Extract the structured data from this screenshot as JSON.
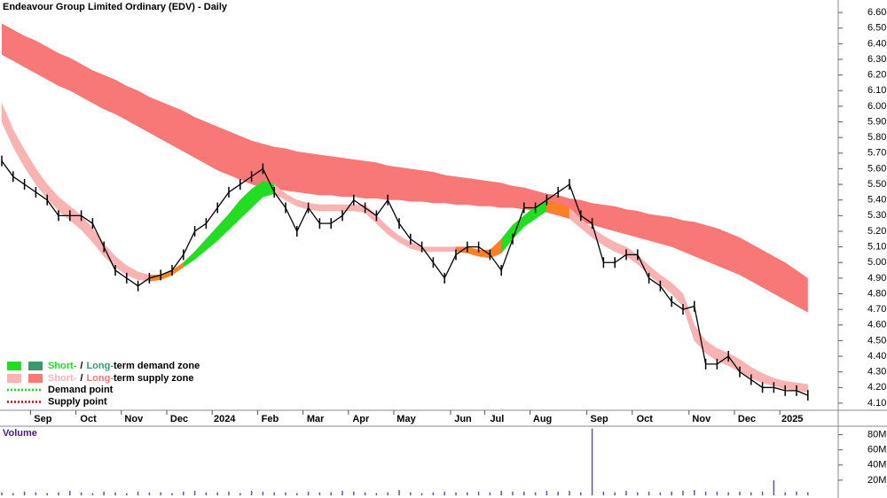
{
  "chart_data": {
    "type": "line",
    "title": "Endeavour Group Limited Ordinary (EDV) - Daily",
    "categories": [
      null,
      null,
      null,
      "Sep",
      null,
      null,
      null,
      "Oct",
      null,
      null,
      null,
      "Nov",
      null,
      null,
      null,
      "Dec",
      null,
      null,
      null,
      "2024",
      null,
      null,
      null,
      "Feb",
      null,
      null,
      null,
      "Mar",
      null,
      null,
      null,
      "Apr",
      null,
      null,
      null,
      "May",
      null,
      null,
      null,
      null,
      "Jun",
      null,
      null,
      "Jul",
      null,
      null,
      null,
      "Aug",
      null,
      null,
      null,
      null,
      "Sep",
      null,
      null,
      null,
      "Oct",
      null,
      null,
      null,
      null,
      "Nov",
      null,
      null,
      null,
      "Dec",
      null,
      null,
      null,
      "2025",
      null,
      null
    ],
    "close": {
      "color": "#000000",
      "values": [
        5.65,
        5.55,
        5.5,
        5.45,
        5.4,
        5.3,
        5.3,
        5.3,
        5.25,
        5.1,
        4.95,
        4.9,
        4.85,
        4.9,
        4.92,
        4.95,
        5.05,
        5.2,
        5.25,
        5.35,
        5.45,
        5.5,
        5.55,
        5.6,
        5.45,
        5.35,
        5.2,
        5.35,
        5.25,
        5.25,
        5.3,
        5.4,
        5.35,
        5.3,
        5.4,
        5.25,
        5.15,
        5.1,
        5.0,
        4.9,
        5.05,
        5.1,
        5.1,
        5.05,
        4.95,
        5.15,
        5.35,
        5.35,
        5.4,
        5.45,
        5.5,
        5.3,
        5.25,
        5.0,
        5.0,
        5.05,
        5.05,
        4.9,
        4.85,
        4.75,
        4.7,
        4.72,
        4.35,
        4.35,
        4.4,
        4.3,
        4.25,
        4.2,
        4.2,
        4.18,
        4.18,
        4.15
      ]
    },
    "long_band": {
      "color": "#f87878",
      "upper": [
        6.53,
        6.49,
        6.45,
        6.42,
        6.38,
        6.34,
        6.31,
        6.27,
        6.23,
        6.2,
        6.17,
        6.13,
        6.1,
        6.06,
        6.03,
        6.0,
        5.97,
        5.93,
        5.9,
        5.87,
        5.84,
        5.81,
        5.78,
        5.76,
        5.74,
        5.73,
        5.71,
        5.7,
        5.69,
        5.68,
        5.67,
        5.66,
        5.65,
        5.64,
        5.62,
        5.61,
        5.6,
        5.59,
        5.58,
        5.56,
        5.55,
        5.54,
        5.53,
        5.52,
        5.51,
        5.49,
        5.48,
        5.46,
        5.44,
        5.43,
        5.41,
        5.4,
        5.38,
        5.37,
        5.36,
        5.34,
        5.33,
        5.31,
        5.3,
        5.29,
        5.27,
        5.26,
        5.24,
        5.22,
        5.19,
        5.16,
        5.12,
        5.08,
        5.04,
        5.0,
        4.95,
        4.9
      ],
      "lower": [
        6.33,
        6.29,
        6.25,
        6.21,
        6.17,
        6.13,
        6.1,
        6.06,
        6.02,
        5.98,
        5.95,
        5.91,
        5.87,
        5.83,
        5.79,
        5.75,
        5.71,
        5.67,
        5.63,
        5.59,
        5.56,
        5.53,
        5.5,
        5.48,
        5.47,
        5.46,
        5.45,
        5.44,
        5.43,
        5.43,
        5.42,
        5.42,
        5.41,
        5.41,
        5.4,
        5.4,
        5.39,
        5.39,
        5.38,
        5.38,
        5.37,
        5.37,
        5.36,
        5.36,
        5.35,
        5.35,
        5.34,
        5.33,
        5.32,
        5.3,
        5.28,
        5.26,
        5.24,
        5.22,
        5.2,
        5.18,
        5.16,
        5.14,
        5.12,
        5.1,
        5.07,
        5.04,
        5.01,
        4.98,
        4.95,
        4.92,
        4.88,
        4.84,
        4.8,
        4.76,
        4.72,
        4.68
      ]
    },
    "short_band": {
      "upper": [
        6.02,
        5.85,
        5.72,
        5.6,
        5.5,
        5.42,
        5.36,
        5.3,
        5.22,
        5.12,
        5.04,
        4.98,
        4.94,
        4.92,
        4.92,
        4.95,
        5.0,
        5.07,
        5.15,
        5.23,
        5.31,
        5.4,
        5.47,
        5.52,
        5.5,
        5.44,
        5.4,
        5.38,
        5.37,
        5.37,
        5.37,
        5.37,
        5.37,
        5.3,
        5.23,
        5.17,
        5.13,
        5.1,
        5.1,
        5.1,
        5.1,
        5.1,
        5.08,
        5.08,
        5.15,
        5.24,
        5.3,
        5.36,
        5.4,
        5.38,
        5.35,
        5.28,
        5.22,
        5.17,
        5.13,
        5.1,
        5.05,
        4.98,
        4.92,
        4.87,
        4.8,
        4.6,
        4.5,
        4.45,
        4.42,
        4.38,
        4.33,
        4.29,
        4.26,
        4.24,
        4.23,
        4.22
      ],
      "lower": [
        5.9,
        5.74,
        5.61,
        5.5,
        5.41,
        5.33,
        5.27,
        5.21,
        5.13,
        5.04,
        4.97,
        4.92,
        4.89,
        4.88,
        4.89,
        4.92,
        4.97,
        5.02,
        5.08,
        5.14,
        5.21,
        5.28,
        5.35,
        5.42,
        5.44,
        5.4,
        5.36,
        5.34,
        5.33,
        5.33,
        5.33,
        5.33,
        5.32,
        5.25,
        5.18,
        5.13,
        5.09,
        5.07,
        5.07,
        5.07,
        5.07,
        5.06,
        5.04,
        5.03,
        5.06,
        5.15,
        5.23,
        5.28,
        5.33,
        5.31,
        5.28,
        5.22,
        5.16,
        5.11,
        5.07,
        5.04,
        4.99,
        4.92,
        4.86,
        4.8,
        4.72,
        4.5,
        4.42,
        4.37,
        4.34,
        4.3,
        4.26,
        4.23,
        4.21,
        4.19,
        4.18,
        4.17
      ],
      "colors": [
        "#f9b3b3",
        "#f9b3b3",
        "#f9b3b3",
        "#f9b3b3",
        "#f9b3b3",
        "#f9b3b3",
        "#f9b3b3",
        "#f9b3b3",
        "#f9b3b3",
        "#f9b3b3",
        "#f9b3b3",
        "#f9b3b3",
        "#f9b3b3",
        "#ff7f27",
        "#ff7f27",
        "#ff7f27",
        "#22dd22",
        "#22dd22",
        "#22dd22",
        "#22dd22",
        "#22dd22",
        "#22dd22",
        "#22dd22",
        "#22dd22",
        "#f9b3b3",
        "#f9b3b3",
        "#f9b3b3",
        "#f9b3b3",
        "#f9b3b3",
        "#f9b3b3",
        "#f9b3b3",
        "#f9b3b3",
        "#f9b3b3",
        "#f9b3b3",
        "#f9b3b3",
        "#f9b3b3",
        "#f9b3b3",
        "#f9b3b3",
        "#f9b3b3",
        "#f9b3b3",
        "#ff7f27",
        "#ff7f27",
        "#ff7f27",
        "#ff7f27",
        "#22dd22",
        "#22dd22",
        "#22dd22",
        "#22dd22",
        "#ff7f27",
        "#ff7f27",
        "#f9b3b3",
        "#f9b3b3",
        "#f9b3b3",
        "#f9b3b3",
        "#f9b3b3",
        "#f9b3b3",
        "#f9b3b3",
        "#f9b3b3",
        "#f9b3b3",
        "#f9b3b3",
        "#f9b3b3",
        "#f9b3b3",
        "#f9b3b3",
        "#f9b3b3",
        "#f9b3b3",
        "#f9b3b3",
        "#f9b3b3",
        "#f9b3b3",
        "#f9b3b3",
        "#f9b3b3",
        "#f9b3b3",
        "#f9b3b3"
      ]
    },
    "ylim": [
      4.06,
      6.68
    ],
    "yticks": [
      {
        "value": 4.1,
        "label": "4.10"
      },
      {
        "value": 4.2,
        "label": "4.20"
      },
      {
        "value": 4.3,
        "label": "4.30"
      },
      {
        "value": 4.4,
        "label": "4.40"
      },
      {
        "value": 4.5,
        "label": "4.50"
      },
      {
        "value": 4.6,
        "label": "4.60"
      },
      {
        "value": 4.7,
        "label": "4.70"
      },
      {
        "value": 4.8,
        "label": "4.80"
      },
      {
        "value": 4.9,
        "label": "4.90"
      },
      {
        "value": 5.0,
        "label": "5.00"
      },
      {
        "value": 5.1,
        "label": "5.10"
      },
      {
        "value": 5.2,
        "label": "5.20"
      },
      {
        "value": 5.3,
        "label": "5.30"
      },
      {
        "value": 5.4,
        "label": "5.40"
      },
      {
        "value": 5.5,
        "label": "5.50"
      },
      {
        "value": 5.6,
        "label": "5.60"
      },
      {
        "value": 5.7,
        "label": "5.70"
      },
      {
        "value": 5.8,
        "label": "5.80"
      },
      {
        "value": 5.9,
        "label": "5.90"
      },
      {
        "value": 6.0,
        "label": "6.00"
      },
      {
        "value": 6.1,
        "label": "6.10"
      },
      {
        "value": 6.2,
        "label": "6.20"
      },
      {
        "value": 6.3,
        "label": "6.30"
      },
      {
        "value": 6.4,
        "label": "6.40"
      },
      {
        "value": 6.5,
        "label": "6.50"
      },
      {
        "value": 6.6,
        "label": "6.60"
      }
    ],
    "legend_position": "bottom-left",
    "legend": [
      {
        "short": "Short-",
        "sep": "/",
        "long": "Long-",
        "text": "term demand zone",
        "short_color": "#22dd22",
        "long_color": "#3a9a6e"
      },
      {
        "short": "Short-",
        "sep": "/",
        "long": "Long-",
        "text": "term supply zone",
        "short_color": "#f9b3b3",
        "long_color": "#f87878"
      }
    ],
    "points": [
      {
        "text": "Demand point",
        "color": "#22cc22"
      },
      {
        "text": "Supply point",
        "color": "#dd0000"
      }
    ],
    "volume": {
      "label": "Volume",
      "color": "#5a5aa8",
      "values": [
        4,
        3,
        5,
        4,
        3,
        4,
        6,
        4,
        3,
        5,
        4,
        3,
        5,
        4,
        4,
        3,
        5,
        6,
        4,
        4,
        5,
        3,
        6,
        5,
        4,
        4,
        3,
        5,
        4,
        4,
        6,
        5,
        4,
        3,
        4,
        7,
        4,
        3,
        4,
        5,
        4,
        4,
        5,
        4,
        6,
        5,
        5,
        4,
        6,
        5,
        6,
        4,
        88,
        5,
        4,
        6,
        4,
        5,
        4,
        5,
        6,
        7,
        5,
        5,
        4,
        5,
        4,
        5,
        20,
        4,
        5,
        4
      ],
      "ylim": [
        0,
        90
      ],
      "yticks": [
        {
          "value": 20,
          "label": "20M"
        },
        {
          "value": 40,
          "label": "40M"
        },
        {
          "value": 60,
          "label": "60M"
        },
        {
          "value": 80,
          "label": "80M"
        }
      ]
    }
  }
}
